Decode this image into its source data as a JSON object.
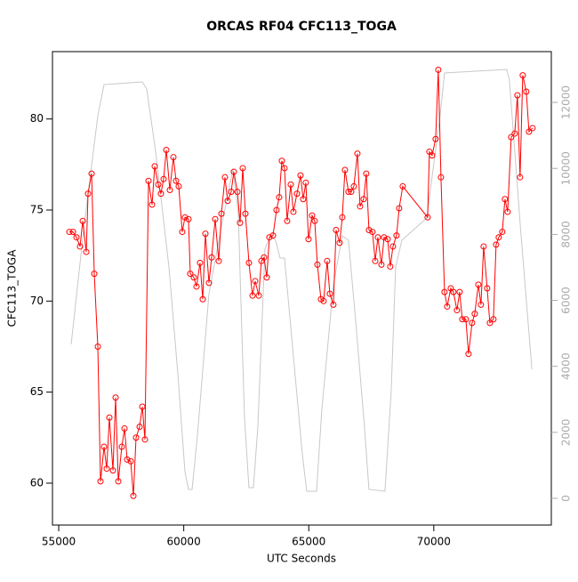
{
  "chart_data": {
    "type": "line",
    "title": "ORCAS RF04 CFC113_TOGA",
    "x_label": "UTC Seconds",
    "y_label": "CFC113_TOGA",
    "xlim": [
      54750,
      74700
    ],
    "xticks": [
      55000,
      60000,
      65000,
      70000
    ],
    "ylim": [
      57.7,
      83.7
    ],
    "yticks": [
      60,
      65,
      70,
      75,
      80
    ],
    "y2lim": [
      -810,
      13540
    ],
    "y2ticks": [
      0,
      2000,
      4000,
      6000,
      8000,
      10000,
      12000
    ],
    "series": [
      {
        "color": "#c8c8c8",
        "axis": "y2",
        "markers": false,
        "x": [
          55498,
          56031,
          56564,
          56813,
          58342,
          58519,
          58875,
          59408,
          59764,
          60048,
          60190,
          60333,
          60546,
          61008,
          61541,
          61968,
          62181,
          62430,
          62608,
          62786,
          62963,
          63248,
          63461,
          63674,
          63852,
          64030,
          64385,
          64741,
          64918,
          65310,
          65523,
          65985,
          66341,
          66589,
          66874,
          67229,
          67407,
          68047,
          68296,
          68474,
          68722,
          69717,
          70251,
          70429,
          72917,
          73024,
          73450,
          73923
        ],
        "values": [
          4666,
          8361,
          11597,
          12541,
          12622,
          12406,
          10518,
          7012,
          3776,
          809,
          270,
          270,
          1888,
          6203,
          8361,
          9979,
          8630,
          2427,
          324,
          324,
          2158,
          7552,
          7956,
          7821,
          7282,
          7282,
          4315,
          1349,
          216,
          216,
          2697,
          6473,
          7956,
          7821,
          5394,
          2158,
          270,
          216,
          3236,
          7012,
          7821,
          8496,
          11597,
          12892,
          13000,
          12676,
          8361,
          3911
        ]
      },
      {
        "color": "#ff0000",
        "markers": true,
        "x": [
          55427,
          55569,
          55711,
          55853,
          55960,
          56102,
          56173,
          56315,
          56422,
          56564,
          56671,
          56813,
          56920,
          57026,
          57169,
          57275,
          57382,
          57524,
          57631,
          57737,
          57880,
          57986,
          58093,
          58235,
          58342,
          58448,
          58591,
          58733,
          58839,
          58982,
          59088,
          59195,
          59302,
          59444,
          59586,
          59693,
          59799,
          59941,
          60048,
          60190,
          60261,
          60404,
          60510,
          60652,
          60759,
          60866,
          61008,
          61115,
          61257,
          61399,
          61506,
          61648,
          61755,
          61897,
          62003,
          62146,
          62252,
          62359,
          62466,
          62608,
          62750,
          62857,
          62999,
          63105,
          63212,
          63319,
          63425,
          63568,
          63710,
          63816,
          63923,
          64030,
          64136,
          64279,
          64385,
          64527,
          64670,
          64776,
          64883,
          64990,
          65132,
          65238,
          65345,
          65487,
          65594,
          65736,
          65843,
          65985,
          66092,
          66234,
          66341,
          66447,
          66589,
          66696,
          66803,
          66945,
          67052,
          67194,
          67300,
          67407,
          67549,
          67656,
          67763,
          67905,
          68011,
          68154,
          68260,
          68367,
          68509,
          68616,
          68758,
          69753,
          69824,
          69931,
          70073,
          70180,
          70287,
          70429,
          70535,
          70678,
          70784,
          70926,
          71033,
          71140,
          71282,
          71389,
          71531,
          71637,
          71780,
          71886,
          71993,
          72135,
          72242,
          72384,
          72491,
          72597,
          72739,
          72846,
          72953,
          73095,
          73237,
          73344,
          73450,
          73557,
          73699,
          73806,
          73948
        ],
        "values": [
          73.8,
          73.8,
          73.5,
          73.0,
          74.4,
          72.7,
          75.9,
          77.0,
          71.5,
          67.5,
          60.1,
          62.0,
          60.8,
          63.6,
          60.7,
          64.7,
          60.1,
          62.0,
          63.0,
          61.3,
          61.2,
          59.3,
          62.5,
          63.1,
          64.2,
          62.4,
          76.6,
          75.3,
          77.4,
          76.4,
          75.9,
          76.7,
          78.3,
          76.1,
          77.9,
          76.6,
          76.3,
          73.8,
          74.6,
          74.5,
          71.5,
          71.3,
          70.8,
          72.1,
          70.1,
          73.7,
          71.0,
          72.4,
          74.5,
          72.2,
          74.8,
          76.8,
          75.5,
          76.0,
          77.1,
          76.0,
          74.3,
          77.3,
          74.8,
          72.1,
          70.3,
          71.1,
          70.3,
          72.2,
          72.4,
          71.3,
          73.5,
          73.6,
          75.0,
          75.7,
          77.7,
          77.3,
          74.4,
          76.4,
          74.9,
          75.9,
          76.9,
          75.6,
          76.5,
          73.4,
          74.7,
          74.4,
          72.0,
          70.1,
          70.0,
          72.2,
          70.4,
          69.8,
          73.9,
          73.2,
          74.6,
          77.2,
          76.0,
          76.0,
          76.3,
          78.1,
          75.2,
          75.6,
          77.0,
          73.9,
          73.8,
          72.2,
          73.5,
          72.0,
          73.5,
          73.4,
          71.9,
          73.0,
          73.6,
          75.1,
          76.3,
          74.6,
          78.2,
          78.0,
          78.9,
          82.7,
          76.8,
          70.5,
          69.7,
          70.7,
          70.5,
          69.5,
          70.5,
          69.0,
          69.0,
          67.1,
          68.8,
          69.3,
          70.9,
          69.8,
          73.0,
          70.7,
          68.8,
          69.0,
          73.1,
          73.5,
          73.8,
          75.6,
          74.9,
          79.0,
          79.2,
          81.3,
          76.8,
          82.4,
          81.5,
          79.3,
          79.5
        ]
      }
    ]
  }
}
